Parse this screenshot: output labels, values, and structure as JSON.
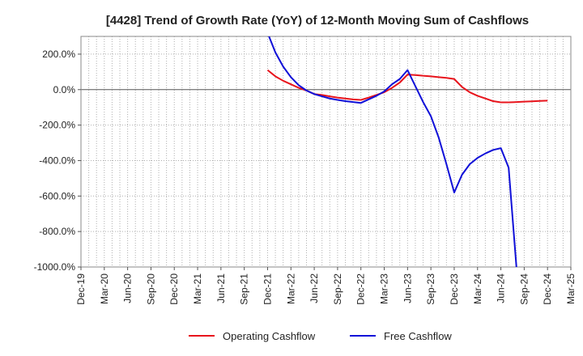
{
  "chart_data": {
    "type": "line",
    "title": "[4428]  Trend of Growth Rate (YoY) of 12-Month Moving Sum of Cashflows",
    "xlabel": "",
    "ylabel": "",
    "ylim": [
      -1000,
      300
    ],
    "yticks": [
      200,
      0,
      -200,
      -400,
      -600,
      -800,
      -1000
    ],
    "ytick_labels": [
      "200.0%",
      "0.0%",
      "-200.0%",
      "-400.0%",
      "-600.0%",
      "-800.0%",
      "-1000.0%"
    ],
    "xtick_labels": [
      "Dec-19",
      "Mar-20",
      "Jun-20",
      "Sep-20",
      "Dec-20",
      "Mar-21",
      "Jun-21",
      "Sep-21",
      "Dec-21",
      "Mar-22",
      "Jun-22",
      "Sep-22",
      "Dec-22",
      "Mar-23",
      "Jun-23",
      "Sep-23",
      "Dec-23",
      "Mar-24",
      "Jun-24",
      "Sep-24",
      "Dec-24",
      "Mar-25"
    ],
    "grid": true,
    "legend_position": "bottom",
    "series": [
      {
        "name": "Operating Cashflow",
        "color": "#e8141c",
        "x": [
          "Dec-21",
          "Jan-22",
          "Feb-22",
          "Mar-22",
          "Apr-22",
          "May-22",
          "Jun-22",
          "Jul-22",
          "Aug-22",
          "Sep-22",
          "Oct-22",
          "Nov-22",
          "Dec-22",
          "Jan-23",
          "Feb-23",
          "Mar-23",
          "Apr-23",
          "May-23",
          "Jun-23",
          "Jul-23",
          "Aug-23",
          "Sep-23",
          "Oct-23",
          "Nov-23",
          "Dec-23",
          "Jan-24",
          "Feb-24",
          "Mar-24",
          "Apr-24",
          "May-24",
          "Jun-24",
          "Jul-24",
          "Aug-24",
          "Sep-24",
          "Oct-24",
          "Nov-24",
          "Dec-24"
        ],
        "y": [
          110,
          75,
          50,
          30,
          10,
          -5,
          -25,
          -30,
          -38,
          -45,
          -50,
          -55,
          -58,
          -45,
          -30,
          -15,
          10,
          40,
          85,
          82,
          78,
          75,
          70,
          66,
          60,
          15,
          -15,
          -35,
          -50,
          -65,
          -72,
          -72,
          -70,
          -68,
          -66,
          -64,
          -62
        ]
      },
      {
        "name": "Free Cashflow",
        "color": "#1010d8",
        "x": [
          "Dec-21",
          "Jan-22",
          "Feb-22",
          "Mar-22",
          "Apr-22",
          "May-22",
          "Jun-22",
          "Jul-22",
          "Aug-22",
          "Sep-22",
          "Oct-22",
          "Nov-22",
          "Dec-22",
          "Jan-23",
          "Feb-23",
          "Mar-23",
          "Apr-23",
          "May-23",
          "Jun-23",
          "Jul-23",
          "Aug-23",
          "Sep-23",
          "Oct-23",
          "Nov-23",
          "Dec-23",
          "Jan-24",
          "Feb-24",
          "Mar-24",
          "Apr-24",
          "May-24",
          "Jun-24",
          "Jul-24",
          "Aug-24"
        ],
        "y": [
          320,
          210,
          130,
          70,
          25,
          -5,
          -25,
          -38,
          -50,
          -58,
          -65,
          -70,
          -75,
          -55,
          -35,
          -10,
          30,
          60,
          110,
          20,
          -70,
          -150,
          -270,
          -420,
          -580,
          -480,
          -420,
          -385,
          -360,
          -340,
          -330,
          -440,
          -1000
        ]
      }
    ]
  }
}
